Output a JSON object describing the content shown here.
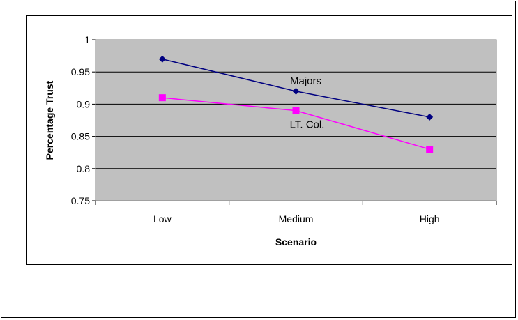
{
  "chart_data": {
    "type": "line",
    "categories": [
      "Low",
      "Medium",
      "High"
    ],
    "xlabel": "Scenario",
    "ylabel": "Percentage Trust",
    "ylim": [
      0.75,
      1
    ],
    "yticks": [
      "0.75",
      "0.8",
      "0.85",
      "0.9",
      "0.95",
      "1"
    ],
    "grid": true,
    "legend": "none",
    "series": [
      {
        "name": "Majors",
        "values": [
          0.97,
          0.92,
          0.88
        ],
        "color": "#000080",
        "marker": "diamond"
      },
      {
        "name": "LT. Col.",
        "values": [
          0.91,
          0.89,
          0.83
        ],
        "color": "#FF00FF",
        "marker": "square"
      }
    ],
    "plot_background": "#C0C0C0"
  }
}
